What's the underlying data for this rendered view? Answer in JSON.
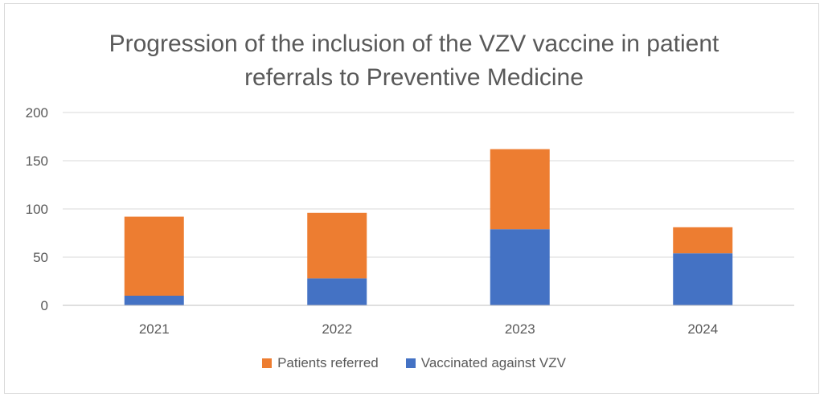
{
  "chart_data": {
    "type": "stacked-bar",
    "title_lines": [
      "Progression of the inclusion of the VZV vaccine in patient",
      "referrals to Preventive Medicine"
    ],
    "categories": [
      "2021",
      "2022",
      "2023",
      "2024"
    ],
    "series": [
      {
        "name": "Vaccinated against VZV",
        "color": "#4472c4",
        "values": [
          10,
          28,
          79,
          54
        ]
      },
      {
        "name": "Patients referred",
        "color": "#ed7d31",
        "values": [
          82,
          68,
          83,
          27
        ]
      }
    ],
    "ylim": [
      0,
      200
    ],
    "yticks": [
      "0",
      "50",
      "100",
      "150",
      "200"
    ],
    "legend_order": [
      "Patients referred",
      "Vaccinated against VZV"
    ],
    "legend_position": "bottom",
    "grid": true
  }
}
